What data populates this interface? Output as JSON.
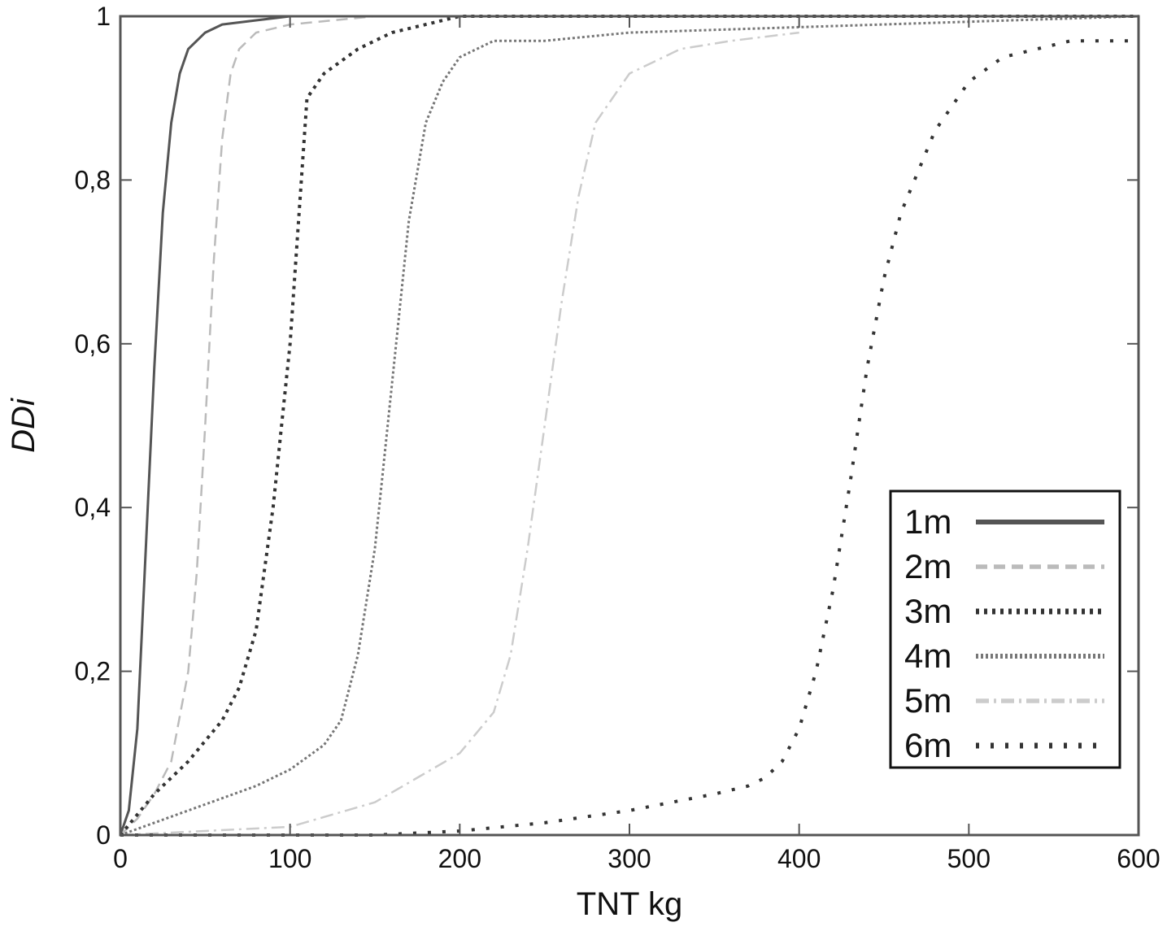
{
  "chart_data": {
    "type": "line",
    "xlabel": "TNT kg",
    "ylabel": "DDi",
    "xlim": [
      0,
      600
    ],
    "ylim": [
      0,
      1
    ],
    "x_ticks": [
      "0",
      "100",
      "200",
      "300",
      "400",
      "500",
      "600"
    ],
    "y_ticks": [
      "0",
      "0,2",
      "0,4",
      "0,6",
      "0,8",
      "1"
    ],
    "legend_position": "lower-right",
    "grid": false,
    "series": [
      {
        "name": "1m",
        "color": "#555555",
        "style": "solid",
        "x": [
          0,
          5,
          10,
          15,
          20,
          25,
          30,
          35,
          40,
          50,
          60,
          80,
          100,
          110
        ],
        "y": [
          0,
          0.03,
          0.13,
          0.35,
          0.57,
          0.76,
          0.87,
          0.93,
          0.96,
          0.98,
          0.99,
          0.995,
          1.0,
          1.0
        ]
      },
      {
        "name": "2m",
        "color": "#bbbbbb",
        "style": "dashed",
        "x": [
          0,
          10,
          20,
          30,
          40,
          45,
          50,
          55,
          60,
          65,
          70,
          80,
          100,
          150,
          600
        ],
        "y": [
          0,
          0.02,
          0.05,
          0.09,
          0.2,
          0.32,
          0.5,
          0.7,
          0.85,
          0.93,
          0.96,
          0.98,
          0.99,
          1.0,
          1.0
        ]
      },
      {
        "name": "3m",
        "color": "#333333",
        "style": "dotted",
        "x": [
          0,
          20,
          40,
          60,
          70,
          80,
          90,
          95,
          100,
          105,
          110,
          120,
          140,
          160,
          180,
          200,
          600
        ],
        "y": [
          0,
          0.05,
          0.09,
          0.14,
          0.18,
          0.25,
          0.4,
          0.5,
          0.6,
          0.75,
          0.9,
          0.93,
          0.96,
          0.98,
          0.99,
          1.0,
          1.0
        ]
      },
      {
        "name": "4m",
        "color": "#777777",
        "style": "dense-dotted",
        "x": [
          0,
          40,
          80,
          100,
          120,
          130,
          140,
          150,
          160,
          170,
          180,
          190,
          200,
          220,
          250,
          300,
          600
        ],
        "y": [
          0,
          0.03,
          0.06,
          0.08,
          0.11,
          0.14,
          0.22,
          0.35,
          0.55,
          0.75,
          0.87,
          0.92,
          0.95,
          0.97,
          0.97,
          0.98,
          1.0
        ]
      },
      {
        "name": "5m",
        "color": "#cccccc",
        "style": "dashdot",
        "x": [
          0,
          100,
          150,
          200,
          220,
          230,
          240,
          250,
          260,
          270,
          280,
          300,
          330,
          360,
          400
        ],
        "y": [
          0,
          0.01,
          0.04,
          0.1,
          0.15,
          0.22,
          0.35,
          0.5,
          0.65,
          0.78,
          0.87,
          0.93,
          0.96,
          0.97,
          0.98
        ]
      },
      {
        "name": "6m",
        "color": "#333333",
        "style": "sparse-dotted",
        "x": [
          0,
          150,
          200,
          250,
          300,
          350,
          370,
          380,
          390,
          400,
          410,
          420,
          430,
          440,
          450,
          460,
          480,
          500,
          520,
          540,
          560,
          580,
          600
        ],
        "y": [
          0,
          0,
          0.005,
          0.015,
          0.03,
          0.05,
          0.06,
          0.07,
          0.09,
          0.13,
          0.2,
          0.3,
          0.43,
          0.57,
          0.68,
          0.76,
          0.86,
          0.92,
          0.95,
          0.96,
          0.97,
          0.97,
          0.97
        ]
      }
    ]
  }
}
